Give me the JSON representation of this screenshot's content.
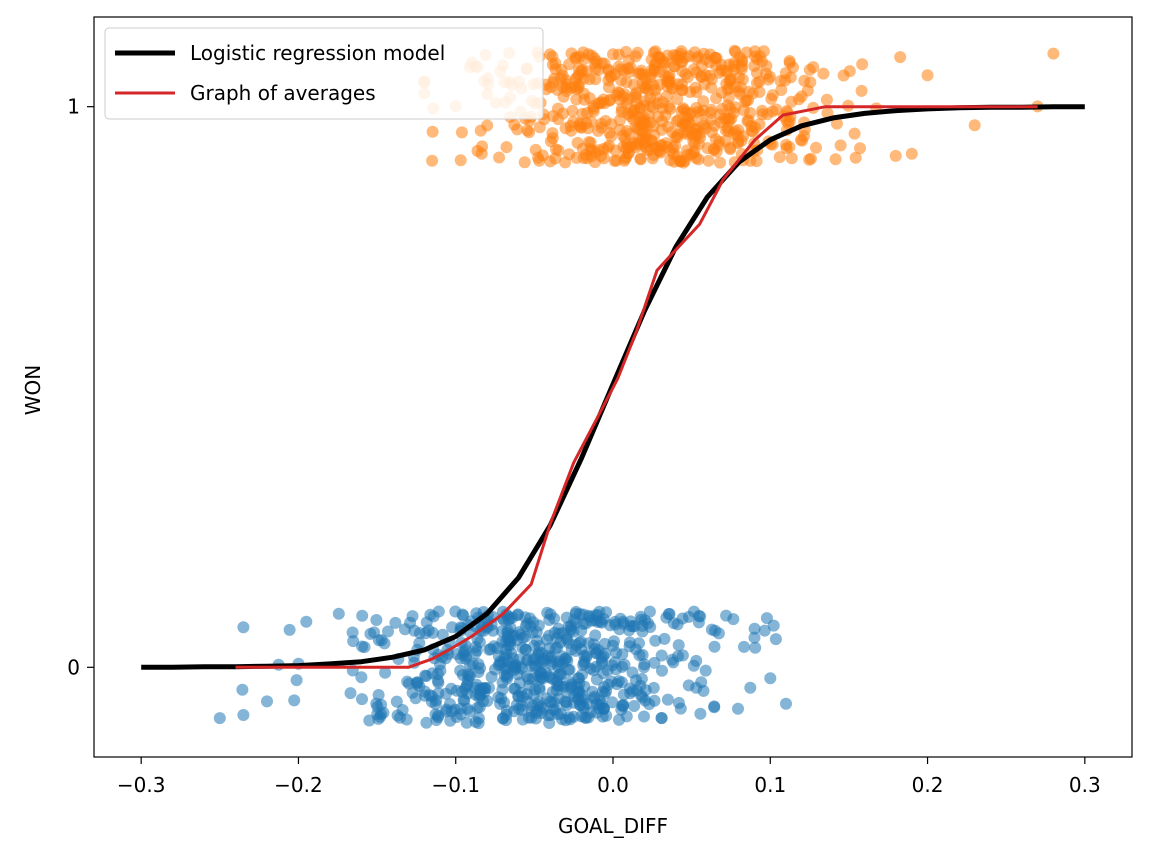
{
  "chart_data": {
    "type": "scatter",
    "title": "",
    "xlabel": "GOAL_DIFF",
    "ylabel": "WON",
    "xlim": [
      -0.33,
      0.33
    ],
    "ylim": [
      -0.16,
      1.16
    ],
    "xticks": [
      -0.3,
      -0.2,
      -0.1,
      0.0,
      0.1,
      0.2,
      0.3
    ],
    "xtick_labels": [
      "−0.3",
      "−0.2",
      "−0.1",
      "0.0",
      "0.1",
      "0.2",
      "0.3"
    ],
    "yticks": [
      0,
      1
    ],
    "ytick_labels": [
      "0",
      "1"
    ],
    "grid": false,
    "legend_position": "upper-left",
    "colors": {
      "won_points": "#ff7f0e",
      "lost_points": "#1f77b4",
      "model_line": "#000000",
      "averages_line": "#d62728"
    },
    "series": [
      {
        "name": "Logistic regression model",
        "kind": "line",
        "x": [
          -0.3,
          -0.28,
          -0.26,
          -0.24,
          -0.22,
          -0.2,
          -0.18,
          -0.16,
          -0.14,
          -0.12,
          -0.1,
          -0.08,
          -0.06,
          -0.04,
          -0.02,
          0.0,
          0.02,
          0.04,
          0.06,
          0.08,
          0.1,
          0.12,
          0.14,
          0.16,
          0.18,
          0.2,
          0.22,
          0.24,
          0.26,
          0.28,
          0.3
        ],
        "y": [
          0.0,
          0.0,
          0.001,
          0.001,
          0.002,
          0.003,
          0.006,
          0.01,
          0.018,
          0.031,
          0.055,
          0.096,
          0.16,
          0.253,
          0.373,
          0.505,
          0.636,
          0.75,
          0.839,
          0.901,
          0.941,
          0.966,
          0.98,
          0.988,
          0.993,
          0.996,
          0.998,
          0.999,
          0.999,
          1.0,
          1.0
        ]
      },
      {
        "name": "Graph of averages",
        "kind": "line",
        "x": [
          -0.24,
          -0.19,
          -0.155,
          -0.13,
          -0.115,
          -0.105,
          -0.09,
          -0.07,
          -0.052,
          -0.04,
          -0.025,
          -0.01,
          0.003,
          0.015,
          0.028,
          0.04,
          0.055,
          0.07,
          0.09,
          0.108,
          0.135,
          0.17,
          0.21,
          0.27
        ],
        "y": [
          0.0,
          0.0,
          0.0,
          0.0,
          0.015,
          0.03,
          0.055,
          0.095,
          0.148,
          0.255,
          0.365,
          0.445,
          0.515,
          0.6,
          0.708,
          0.745,
          0.79,
          0.87,
          0.94,
          0.985,
          1.0,
          1.0,
          1.0,
          1.0
        ]
      }
    ],
    "scatter_groups": [
      {
        "outcome": 1,
        "color_key": "won_points",
        "x_range": [
          -0.12,
          0.28
        ],
        "x_center": 0.03,
        "x_spread": 0.055,
        "count": 620,
        "jitter": 0.1,
        "outliers_x": [
          -0.115,
          -0.1,
          -0.08,
          -0.07,
          0.19,
          0.2,
          0.23,
          0.27,
          0.28
        ]
      },
      {
        "outcome": 0,
        "color_key": "lost_points",
        "x_range": [
          -0.26,
          0.115
        ],
        "x_center": -0.05,
        "x_spread": 0.055,
        "count": 620,
        "jitter": 0.1,
        "outliers_x": [
          -0.25,
          -0.235,
          -0.235,
          -0.22,
          -0.2,
          -0.195,
          0.09,
          0.1,
          0.11
        ]
      }
    ]
  }
}
